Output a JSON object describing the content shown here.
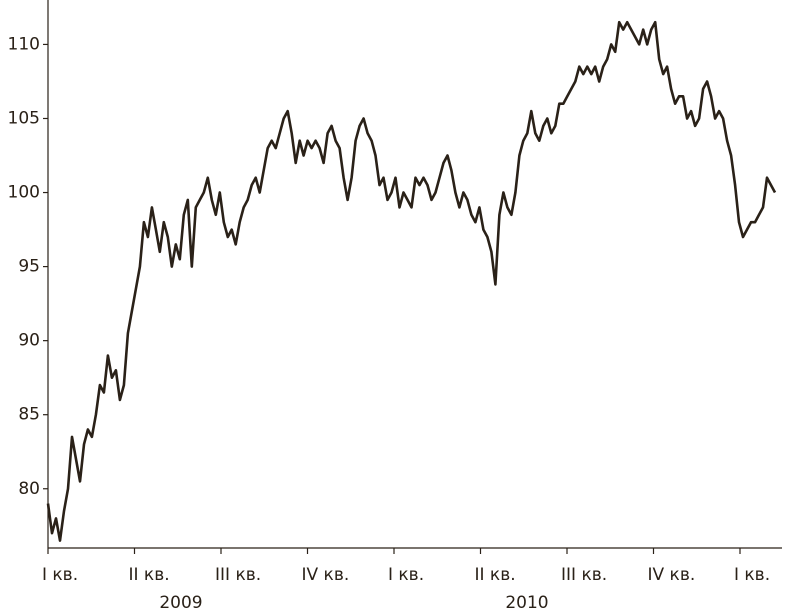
{
  "chart_data": {
    "type": "line",
    "values": [
      79,
      77,
      78,
      76.5,
      78.5,
      80,
      83.5,
      82,
      80.5,
      83,
      84,
      83.5,
      85,
      87,
      86.5,
      89,
      87.5,
      88,
      86,
      87,
      90.5,
      92,
      93.5,
      95,
      98,
      97,
      99,
      97.5,
      96,
      98,
      97,
      95,
      96.5,
      95.5,
      98.5,
      99.5,
      95,
      99,
      99.5,
      100,
      101,
      99.5,
      98.5,
      100,
      98,
      97,
      97.5,
      96.5,
      98,
      99,
      99.5,
      100.5,
      101,
      100,
      101.5,
      103,
      103.5,
      103,
      104,
      105,
      105.5,
      104,
      102,
      103.5,
      102.5,
      103.5,
      103,
      103.5,
      103,
      102,
      104,
      104.5,
      103.5,
      103,
      101,
      99.5,
      101,
      103.5,
      104.5,
      105,
      104,
      103.5,
      102.5,
      100.5,
      101,
      99.5,
      100,
      101,
      99,
      100,
      99.5,
      99,
      101,
      100.5,
      101,
      100.5,
      99.5,
      100,
      101,
      102,
      102.5,
      101.5,
      100,
      99,
      100,
      99.5,
      98.5,
      98,
      99,
      97.5,
      97,
      96,
      93.8,
      98.5,
      100,
      99,
      98.5,
      100,
      102.5,
      103.5,
      104,
      105.5,
      104,
      103.5,
      104.5,
      105,
      104,
      104.5,
      106,
      106,
      106.5,
      107,
      107.5,
      108.5,
      108,
      108.5,
      108,
      108.5,
      107.5,
      108.5,
      109,
      110,
      109.5,
      111.5,
      111,
      111.5,
      111,
      110.5,
      110,
      111,
      110,
      111,
      111.5,
      109,
      108,
      108.5,
      107,
      106,
      106.5,
      106.5,
      105,
      105.5,
      104.5,
      105,
      107,
      107.5,
      106.5,
      105,
      105.5,
      105,
      103.5,
      102.5,
      100.5,
      98,
      97,
      97.5,
      98,
      98,
      98.5,
      99,
      101,
      100.5,
      100
    ],
    "color": "#2a2118",
    "ylim": [
      76,
      113
    ],
    "yticks": [
      80,
      85,
      90,
      95,
      100,
      105,
      110
    ],
    "quarters": [
      "I кв.",
      "II кв.",
      "III кв.",
      "IV кв.",
      "I кв.",
      "II кв.",
      "III кв.",
      "IV кв.",
      "I кв."
    ],
    "years": [
      "2009",
      "2010"
    ]
  }
}
